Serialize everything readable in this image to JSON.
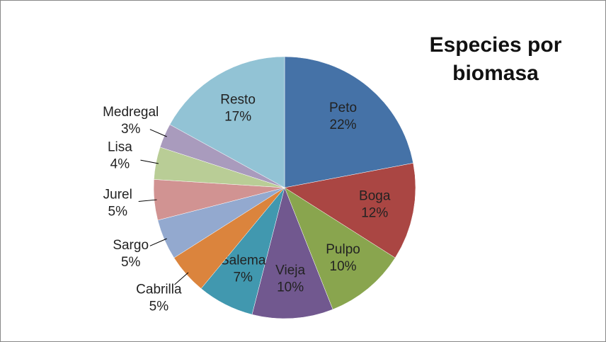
{
  "chart_data": {
    "type": "pie",
    "title": "Especies por biomasa",
    "categories": [
      "Peto",
      "Boga",
      "Pulpo",
      "Vieja",
      "Salema",
      "Cabrilla",
      "Sargo",
      "Jurel",
      "Lisa",
      "Medregal",
      "Resto"
    ],
    "values": [
      22,
      12,
      10,
      10,
      7,
      5,
      5,
      5,
      4,
      3,
      17
    ],
    "value_labels": [
      "22%",
      "12%",
      "10%",
      "10%",
      "7%",
      "5%",
      "5%",
      "5%",
      "4%",
      "3%",
      "17%"
    ],
    "colors": [
      "#4572a7",
      "#aa4643",
      "#89a54e",
      "#71588f",
      "#4198af",
      "#db843d",
      "#93a9cf",
      "#d19392",
      "#b9cd96",
      "#a99bbd",
      "#92c3d5"
    ]
  }
}
